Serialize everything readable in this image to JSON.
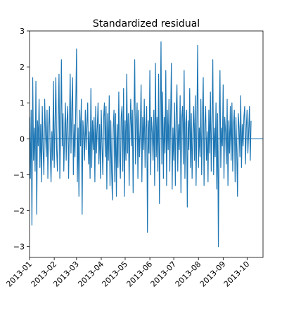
{
  "chart_data": {
    "type": "line",
    "title": "Standardized residual",
    "xlabel": "",
    "ylabel": "",
    "ylim": [
      -3.3,
      3.0
    ],
    "xlim": [
      "2013-01-01",
      "2013-10-21"
    ],
    "yticks": [
      -3,
      -2,
      -1,
      0,
      1,
      2,
      3
    ],
    "xticks": [
      "2013-01",
      "2013-02",
      "2013-03",
      "2013-04",
      "2013-05",
      "2013-06",
      "2013-07",
      "2013-08",
      "2013-09",
      "2013-10"
    ],
    "grid": false,
    "line_color": "#1f77b4",
    "reference_line": {
      "y": 0,
      "color": "#1f77b4"
    },
    "series": [
      {
        "x_start": "2013-01-01",
        "x_step_days": 1,
        "values": [
          0.6,
          -1.1,
          0.8,
          -2.4,
          1.7,
          -0.6,
          0.3,
          -0.9,
          1.6,
          -2.1,
          0.5,
          -0.2,
          1.1,
          -0.8,
          0.4,
          -1.2,
          0.9,
          -0.3,
          -1.0,
          1.1,
          0.2,
          -0.5,
          0.8,
          -1.1,
          0.3,
          0.9,
          -0.4,
          -1.2,
          0.2,
          -0.6,
          1.6,
          -0.8,
          0.4,
          1.7,
          -0.3,
          -0.9,
          0.6,
          1.8,
          -1.1,
          0.2,
          2.2,
          -0.2,
          0.7,
          -0.9,
          0.1,
          1.0,
          -0.6,
          0.5,
          0.9,
          -1.1,
          0.3,
          1.8,
          -0.4,
          0.8,
          1.7,
          -1.0,
          0.4,
          -0.5,
          0.9,
          2.5,
          -1.2,
          0.3,
          -1.6,
          0.8,
          -0.2,
          1.1,
          -2.1,
          0.5,
          0.1,
          -0.6,
          0.8,
          -0.3,
          0.4,
          1.0,
          -0.7,
          0.2,
          -1.1,
          1.4,
          -0.8,
          0.5,
          -0.3,
          0.6,
          -1.2,
          0.9,
          -0.4,
          0.3,
          1.0,
          -0.7,
          0.4,
          -1.1,
          0.8,
          -0.2,
          -1.0,
          0.6,
          1.0,
          -0.5,
          0.9,
          -1.4,
          0.7,
          -0.6,
          1.2,
          -1.3,
          0.5,
          -0.9,
          -1.7,
          0.3,
          0.8,
          -1.2,
          0.7,
          -1.6,
          0.4,
          -0.8,
          1.3,
          -0.5,
          -1.1,
          0.6,
          0.9,
          -0.9,
          1.4,
          -1.6,
          0.5,
          -0.6,
          1.8,
          -0.4,
          0.7,
          -1.3,
          0.3,
          1.1,
          -0.2,
          0.8,
          -1.5,
          0.6,
          2.2,
          -0.7,
          0.4,
          1.0,
          -1.1,
          0.8,
          -0.5,
          0.2,
          1.5,
          -1.2,
          0.6,
          -0.3,
          1.1,
          -0.8,
          0.3,
          0.9,
          -2.6,
          0.5,
          -0.4,
          1.9,
          -1.0,
          0.6,
          0.2,
          -0.6,
          0.8,
          -1.3,
          2.1,
          -0.5,
          0.6,
          -0.9,
          1.8,
          -1.8,
          0.4,
          2.7,
          -0.7,
          1.3,
          -1.1,
          0.6,
          -0.4,
          1.9,
          -1.3,
          0.8,
          -0.3,
          1.1,
          -0.9,
          0.5,
          2.1,
          -1.4,
          0.3,
          -0.6,
          1.0,
          -1.3,
          0.7,
          1.5,
          -0.9,
          0.4,
          -0.3,
          1.2,
          -1.5,
          0.6,
          0.9,
          -0.7,
          1.9,
          -1.1,
          0.4,
          0.8,
          -1.9,
          0.5,
          -0.3,
          1.4,
          -0.8,
          0.7,
          -1.1,
          0.2,
          0.9,
          -0.6,
          1.2,
          -1.3,
          0.4,
          2.6,
          -0.8,
          0.3,
          -0.5,
          1.1,
          -1.0,
          0.6,
          1.7,
          -1.3,
          0.4,
          0.9,
          -0.6,
          0.2,
          -1.2,
          0.8,
          -0.4,
          1.3,
          -0.9,
          0.5,
          2.2,
          -1.0,
          0.3,
          -0.5,
          1.0,
          -1.4,
          0.7,
          -3.0,
          0.4,
          1.9,
          -0.8,
          0.3,
          -0.2,
          1.5,
          -1.1,
          0.6,
          0.2,
          -0.7,
          1.1,
          -1.3,
          0.5,
          -0.4,
          0.9,
          -0.6,
          1.0,
          -0.9,
          0.4,
          0.8,
          -1.2,
          0.6,
          -0.3,
          -1.6,
          0.7,
          0.3,
          -0.5,
          1.2,
          -0.8,
          0.4,
          -0.2,
          0.6,
          0.9,
          -0.7,
          0.3,
          0.8,
          -0.4,
          0.2,
          0.9,
          -0.6,
          0.5
        ]
      }
    ]
  }
}
